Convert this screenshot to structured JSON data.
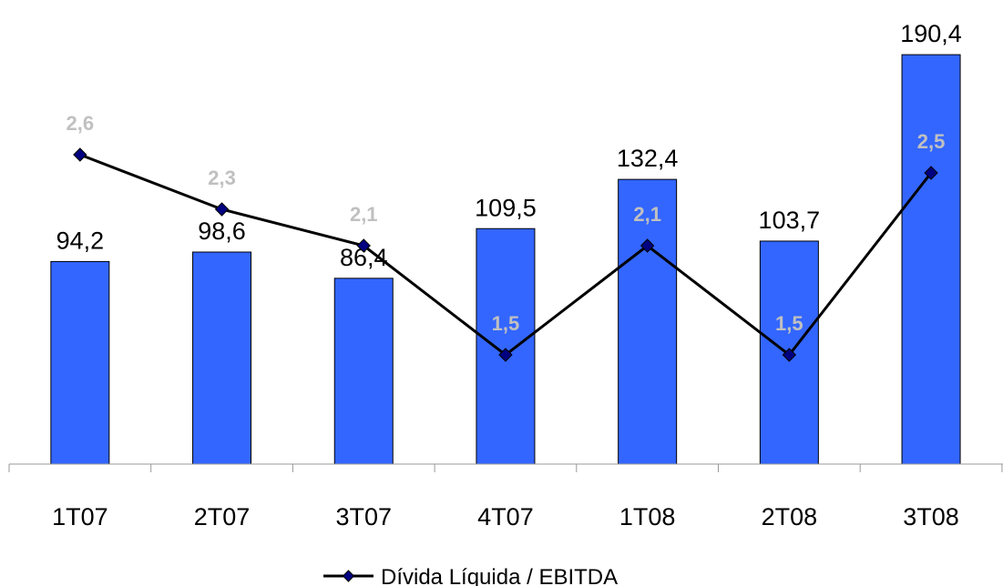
{
  "chart_data": {
    "type": "bar",
    "categories": [
      "1T07",
      "2T07",
      "3T07",
      "4T07",
      "1T08",
      "2T08",
      "3T08"
    ],
    "series": [
      {
        "type": "bar",
        "values": [
          94.2,
          98.6,
          86.4,
          109.5,
          132.4,
          103.7,
          190.4
        ],
        "value_labels": [
          "94,2",
          "98,6",
          "86,4",
          "109,5",
          "132,4",
          "103,7",
          "190,4"
        ],
        "color": "#3366FF"
      },
      {
        "name": "Dívida Líquida / EBITDA",
        "type": "line",
        "values": [
          2.6,
          2.3,
          2.1,
          1.5,
          2.1,
          1.5,
          2.5
        ],
        "value_labels": [
          "2,6",
          "2,3",
          "2,1",
          "1,5",
          "2,1",
          "1,5",
          "2,5"
        ],
        "color": "#000000",
        "marker_color": "#000080",
        "label_color": "#C0C0C0"
      }
    ],
    "ylim": [
      0,
      200
    ],
    "ratio_ylim": [
      0.9,
      4.0
    ],
    "grid": false,
    "legend_position": "bottom"
  }
}
